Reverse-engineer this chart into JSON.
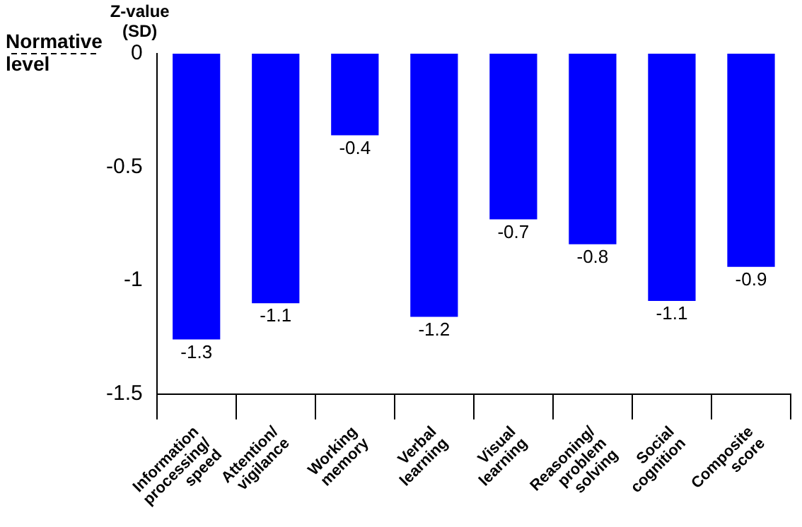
{
  "chart_data": {
    "type": "bar",
    "ylabel": "Z-value (SD)",
    "categories": [
      "Information processing/ speed",
      "Attention/ vigilance",
      "Working memory",
      "Verbal learning",
      "Visual learning",
      "Reasoning/ problem solving",
      "Social cognition",
      "Composite score"
    ],
    "values": [
      -1.26,
      -1.1,
      -0.36,
      -1.16,
      -0.73,
      -0.84,
      -1.09,
      -0.94
    ],
    "value_labels": [
      "-1.3",
      "-1.1",
      "-0.4",
      "-1.2",
      "-0.7",
      "-0.8",
      "-1.1",
      "-0.9"
    ],
    "color": "#0000ff",
    "ylim": [
      -1.5,
      0
    ],
    "yticks": [
      -1.5,
      -1,
      -0.5,
      0
    ],
    "ref_lines": [
      {
        "axis": "y",
        "value": 0,
        "label": "Normative level",
        "line_style": "dashed"
      }
    ],
    "grid": false,
    "legend": false
  }
}
